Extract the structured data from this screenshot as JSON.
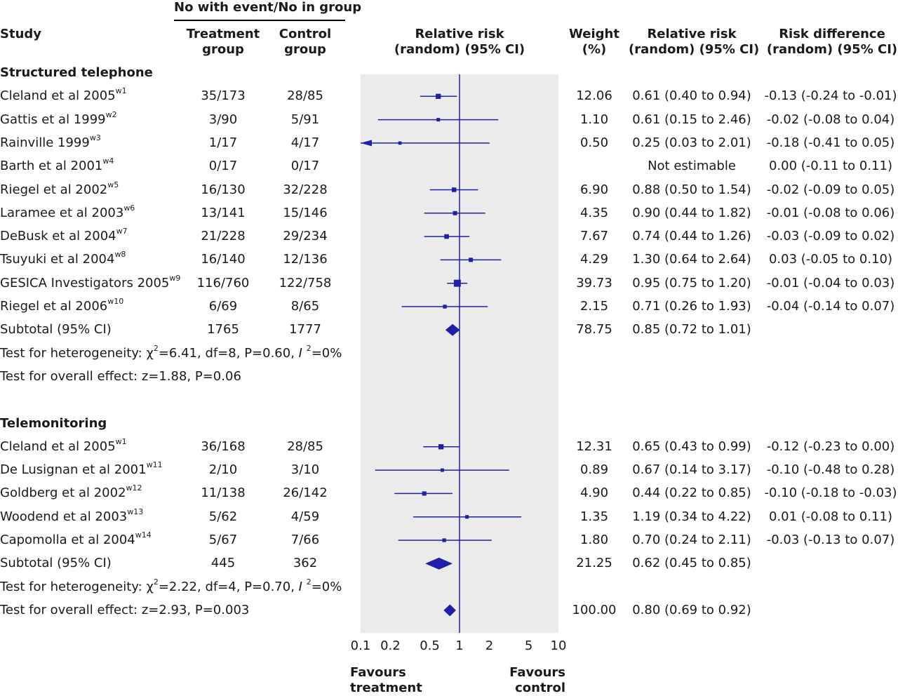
{
  "header": {
    "group_title": "No with event/No in group",
    "study": "Study",
    "treatment_1": "Treatment",
    "treatment_2": "group",
    "control_1": "Control",
    "control_2": "group",
    "rr_1": "Relative risk",
    "rr_2": "(random) (95% CI)",
    "weight_1": "Weight",
    "weight_2": "(%)",
    "rrci_1": "Relative risk",
    "rrci_2": "(random) (95% CI)",
    "rd_1": "Risk difference",
    "rd_2": "(random) (95% CI)"
  },
  "footer": {
    "favours_left_1": "Favours",
    "favours_left_2": "treatment",
    "favours_right_1": "Favours",
    "favours_right_2": "control"
  },
  "colors": {
    "marker": "#1f1fa8",
    "panel": "#ebebeb"
  },
  "chart_data": {
    "type": "forest",
    "x_scale": "log",
    "x_ticks": [
      0.1,
      0.2,
      0.5,
      1,
      2,
      5,
      10
    ],
    "x_tick_labels": [
      "0.1",
      "0.2",
      "0.5",
      "1",
      "2",
      "5",
      "10"
    ],
    "xlim": [
      0.1,
      10
    ],
    "null_value": 1,
    "rows": [
      {
        "kind": "section",
        "label": "Structured telephone"
      },
      {
        "kind": "study",
        "study": "Cleland et al 2005",
        "ref": "w1",
        "treatment": "35/173",
        "control": "28/85",
        "weight": "12.06",
        "rr_text": "0.61 (0.40 to 0.94)",
        "rd_text": "-0.13 (-0.24 to -0.01)",
        "rr": 0.61,
        "lo": 0.4,
        "hi": 0.94,
        "w": 12.06
      },
      {
        "kind": "study",
        "study": "Gattis et al 1999",
        "ref": "w2",
        "treatment": "3/90",
        "control": "5/91",
        "weight": "1.10",
        "rr_text": "0.61 (0.15 to 2.46)",
        "rd_text": "-0.02 (-0.08 to 0.04)",
        "rr": 0.61,
        "lo": 0.15,
        "hi": 2.46,
        "w": 1.1
      },
      {
        "kind": "study",
        "study": "Rainville 1999",
        "ref": "w3",
        "treatment": "1/17",
        "control": "4/17",
        "weight": "0.50",
        "rr_text": "0.25 (0.03 to 2.01)",
        "rd_text": "-0.18 (-0.41 to 0.05)",
        "rr": 0.25,
        "lo": 0.03,
        "hi": 2.01,
        "w": 0.5
      },
      {
        "kind": "study",
        "study": "Barth et al 2001",
        "ref": "w4",
        "treatment": "0/17",
        "control": "0/17",
        "weight": "",
        "rr_text": "Not estimable",
        "rd_text": "0.00 (-0.11 to 0.11)",
        "rr": null,
        "lo": null,
        "hi": null,
        "w": null
      },
      {
        "kind": "study",
        "study": "Riegel et al 2002",
        "ref": "w5",
        "treatment": "16/130",
        "control": "32/228",
        "weight": "6.90",
        "rr_text": "0.88 (0.50 to 1.54)",
        "rd_text": "-0.02 (-0.09 to 0.05)",
        "rr": 0.88,
        "lo": 0.5,
        "hi": 1.54,
        "w": 6.9
      },
      {
        "kind": "study",
        "study": "Laramee et al 2003",
        "ref": "w6",
        "treatment": "13/141",
        "control": "15/146",
        "weight": "4.35",
        "rr_text": "0.90 (0.44 to 1.82)",
        "rd_text": "-0.01 (-0.08 to 0.06)",
        "rr": 0.9,
        "lo": 0.44,
        "hi": 1.82,
        "w": 4.35
      },
      {
        "kind": "study",
        "study": "DeBusk et al 2004",
        "ref": "w7",
        "treatment": "21/228",
        "control": "29/234",
        "weight": "7.67",
        "rr_text": "0.74 (0.44 to 1.26)",
        "rd_text": "-0.03 (-0.09 to 0.02)",
        "rr": 0.74,
        "lo": 0.44,
        "hi": 1.26,
        "w": 7.67
      },
      {
        "kind": "study",
        "study": "Tsuyuki et al 2004",
        "ref": "w8",
        "treatment": "16/140",
        "control": "12/136",
        "weight": "4.29",
        "rr_text": "1.30 (0.64 to 2.64)",
        "rd_text": "0.03 (-0.05 to 0.10)",
        "rr": 1.3,
        "lo": 0.64,
        "hi": 2.64,
        "w": 4.29
      },
      {
        "kind": "study",
        "study": "GESICA Investigators 2005",
        "ref": "w9",
        "treatment": "116/760",
        "control": "122/758",
        "weight": "39.73",
        "rr_text": "0.95 (0.75 to 1.20)",
        "rd_text": "-0.01 (-0.04 to 0.03)",
        "rr": 0.95,
        "lo": 0.75,
        "hi": 1.2,
        "w": 39.73
      },
      {
        "kind": "study",
        "study": "Riegel et al 2006",
        "ref": "w10",
        "treatment": "6/69",
        "control": "8/65",
        "weight": "2.15",
        "rr_text": "0.71 (0.26 to 1.93)",
        "rd_text": "-0.04 (-0.14 to 0.07)",
        "rr": 0.71,
        "lo": 0.26,
        "hi": 1.93,
        "w": 2.15
      },
      {
        "kind": "subtotal",
        "study": "Subtotal (95% CI)",
        "treatment": "1765",
        "control": "1777",
        "weight": "78.75",
        "rr_text": "0.85 (0.72 to 1.01)",
        "rd_text": "",
        "rr": 0.85,
        "lo": 0.72,
        "hi": 1.01
      },
      {
        "kind": "note",
        "parts": [
          {
            "t": "Test for heterogeneity: χ"
          },
          {
            "sup": "2"
          },
          {
            "t": "=6.41, df=8, P=0.60, "
          },
          {
            "i": "I "
          },
          {
            "sup": "2"
          },
          {
            "t": "=0%"
          }
        ]
      },
      {
        "kind": "note",
        "parts": [
          {
            "t": "Test for overall effect: z=1.88, P=0.06"
          }
        ]
      },
      {
        "kind": "blank"
      },
      {
        "kind": "section",
        "label": "Telemonitoring"
      },
      {
        "kind": "study",
        "study": "Cleland et al 2005",
        "ref": "w1",
        "treatment": "36/168",
        "control": "28/85",
        "weight": "12.31",
        "rr_text": "0.65 (0.43 to 0.99)",
        "rd_text": "-0.12 (-0.23 to 0.00)",
        "rr": 0.65,
        "lo": 0.43,
        "hi": 0.99,
        "w": 12.31
      },
      {
        "kind": "study",
        "study": "De Lusignan et al 2001",
        "ref": "w11",
        "treatment": "2/10",
        "control": "3/10",
        "weight": "0.89",
        "rr_text": "0.67 (0.14 to 3.17)",
        "rd_text": "-0.10 (-0.48 to 0.28)",
        "rr": 0.67,
        "lo": 0.14,
        "hi": 3.17,
        "w": 0.89
      },
      {
        "kind": "study",
        "study": "Goldberg et al 2002",
        "ref": "w12",
        "treatment": "11/138",
        "control": "26/142",
        "weight": "4.90",
        "rr_text": "0.44 (0.22 to 0.85)",
        "rd_text": "-0.10 (-0.18 to -0.03)",
        "rr": 0.44,
        "lo": 0.22,
        "hi": 0.85,
        "w": 4.9
      },
      {
        "kind": "study",
        "study": "Woodend et al 2003",
        "ref": "w13",
        "treatment": "5/62",
        "control": "4/59",
        "weight": "1.35",
        "rr_text": "1.19 (0.34 to 4.22)",
        "rd_text": "0.01 (-0.08 to 0.11)",
        "rr": 1.19,
        "lo": 0.34,
        "hi": 4.22,
        "w": 1.35
      },
      {
        "kind": "study",
        "study": "Capomolla et al 2004",
        "ref": "w14",
        "treatment": "5/67",
        "control": "7/66",
        "weight": "1.80",
        "rr_text": "0.70 (0.24 to 2.11)",
        "rd_text": "-0.03 (-0.13 to 0.07)",
        "rr": 0.7,
        "lo": 0.24,
        "hi": 2.11,
        "w": 1.8
      },
      {
        "kind": "subtotal",
        "study": "Subtotal (95% CI)",
        "treatment": "445",
        "control": "362",
        "weight": "21.25",
        "rr_text": "0.62 (0.45 to 0.85)",
        "rd_text": "",
        "rr": 0.62,
        "lo": 0.45,
        "hi": 0.85
      },
      {
        "kind": "note",
        "parts": [
          {
            "t": "Test for heterogeneity: χ"
          },
          {
            "sup": "2"
          },
          {
            "t": "=2.22, df=4, P=0.70, "
          },
          {
            "i": "I "
          },
          {
            "sup": "2"
          },
          {
            "t": "=0%"
          }
        ]
      },
      {
        "kind": "overall",
        "study": "Test for overall effect: z=2.93, P=0.003",
        "weight": "100.00",
        "rr_text": "0.80 (0.69 to 0.92)",
        "rr": 0.8,
        "lo": 0.69,
        "hi": 0.92
      }
    ]
  }
}
